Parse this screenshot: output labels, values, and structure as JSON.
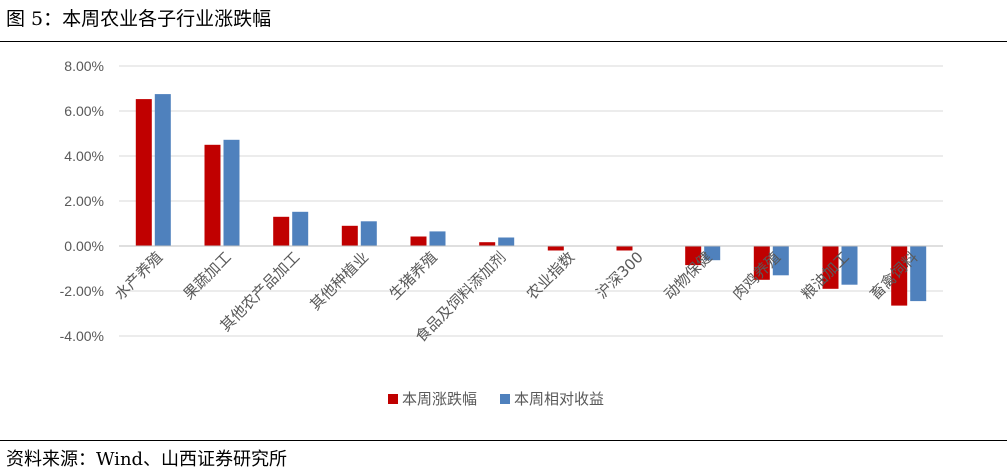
{
  "figure": {
    "title": "图 5：本周农业各子行业涨跌幅",
    "source": "资料来源：Wind、山西证券研究所"
  },
  "colors": {
    "series_1": "#C00000",
    "series_2": "#4F81BD",
    "gridline": "#D9D9D9",
    "zero_line": "#BFBFBF",
    "text": "#595959"
  },
  "chart_data": {
    "type": "bar",
    "categories": [
      "水产养殖",
      "果蔬加工",
      "其他农产品加工",
      "其他种植业",
      "生猪养殖",
      "食品及饲料添加剂",
      "农业指数",
      "沪深300",
      "动物保健",
      "肉鸡养殖",
      "粮油加工",
      "畜禽饲料"
    ],
    "series": [
      {
        "name": "本周涨跌幅",
        "values": [
          6.53,
          4.5,
          1.3,
          0.9,
          0.42,
          0.17,
          -0.2,
          -0.2,
          -0.85,
          -1.5,
          -1.9,
          -2.65
        ]
      },
      {
        "name": "本周相对收益",
        "values": [
          6.75,
          4.72,
          1.52,
          1.1,
          0.65,
          0.38,
          0.0,
          0.0,
          -0.63,
          -1.3,
          -1.72,
          -2.45
        ]
      }
    ],
    "ylim": [
      -4,
      8
    ],
    "yticks": [
      "8.00%",
      "6.00%",
      "4.00%",
      "2.00%",
      "0.00%",
      "-2.00%",
      "-4.00%"
    ],
    "ytick_values": [
      8,
      6,
      4,
      2,
      0,
      -2,
      -4
    ],
    "grid": true,
    "legend_position": "bottom-center",
    "title": "",
    "xlabel": "",
    "ylabel": ""
  }
}
